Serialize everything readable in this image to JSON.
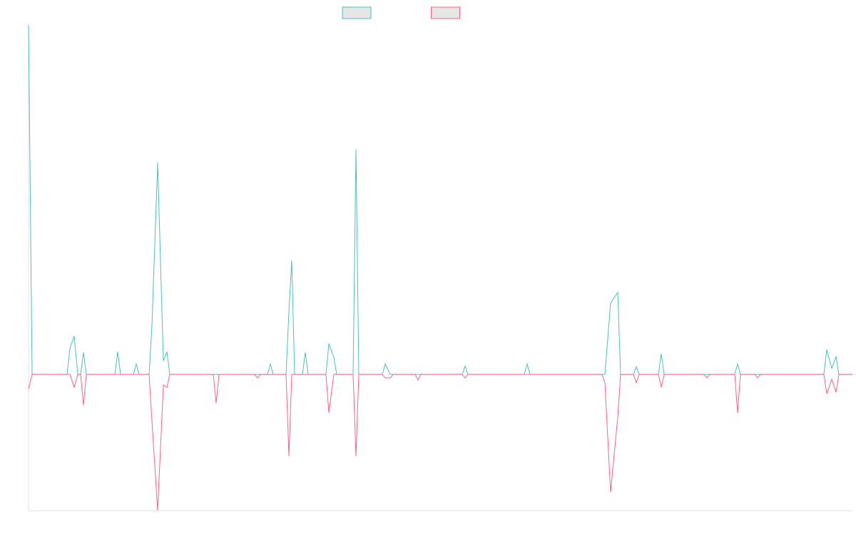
{
  "chart_data": {
    "type": "line",
    "x": [
      0,
      5,
      54,
      58,
      64,
      69,
      73,
      77,
      81,
      121,
      125,
      129,
      147,
      151,
      155,
      169,
      173,
      181,
      189,
      194,
      198,
      259,
      263,
      267,
      317,
      321,
      325,
      335,
      339,
      343,
      361,
      365,
      369,
      373,
      384,
      388,
      392,
      417,
      421,
      428,
      432,
      455,
      459,
      463,
      496,
      500,
      507,
      511,
      542,
      546,
      550,
      608,
      612,
      616,
      695,
      699,
      703,
      804,
      808,
      816,
      826,
      830,
      848,
      852,
      856,
      883,
      887,
      891,
      947,
      951,
      955,
      990,
      994,
      998,
      1018,
      1022,
      1026,
      1115,
      1119,
      1126,
      1132,
      1136,
      1155
    ],
    "xlim": [
      0,
      1155
    ],
    "ylim": [
      -39,
      100
    ],
    "series": [
      {
        "color": "#4bc0c0",
        "values": [
          100,
          0,
          0,
          7.5,
          11,
          0,
          0,
          6.3,
          0,
          0,
          6.5,
          0,
          0,
          3,
          0,
          0,
          14,
          60.6,
          3.9,
          6.5,
          0,
          0,
          0,
          0,
          0,
          0,
          0,
          0,
          3,
          0,
          0,
          18,
          32.6,
          0,
          0,
          6.3,
          0,
          0,
          8.8,
          4.9,
          0,
          0,
          64.3,
          0,
          0,
          3,
          0,
          0,
          0,
          0,
          0,
          0,
          2.4,
          0,
          0,
          3,
          0,
          0,
          0,
          20.4,
          23.5,
          0,
          0,
          2.2,
          0,
          0,
          5.9,
          0,
          0,
          0,
          0,
          0,
          3,
          0,
          0,
          0,
          0,
          0,
          7.1,
          1.8,
          5.1,
          0,
          0
        ]
      },
      {
        "color": "#ff6384",
        "values": [
          -4.1,
          0,
          0,
          0,
          -3.7,
          0,
          0,
          -8.8,
          0,
          0,
          0,
          0,
          0,
          0,
          0,
          0,
          -13.3,
          -39,
          -3,
          -3.7,
          0,
          0,
          -8.2,
          0,
          0,
          -1,
          0,
          0,
          0,
          0,
          0,
          -23.3,
          0,
          0,
          0,
          0,
          0,
          0,
          -11,
          0,
          0,
          0,
          -23.3,
          0,
          0,
          -1,
          -1,
          0,
          0,
          -1.6,
          0,
          0,
          -1,
          0,
          0,
          0,
          0,
          0,
          -2.4,
          -33.7,
          -12.2,
          0,
          0,
          -2.4,
          0,
          0,
          -3.7,
          0,
          0,
          -1,
          0,
          0,
          -11,
          0,
          0,
          -1,
          0,
          0,
          -5.5,
          -1.4,
          -5.1,
          0,
          0
        ]
      }
    ]
  }
}
